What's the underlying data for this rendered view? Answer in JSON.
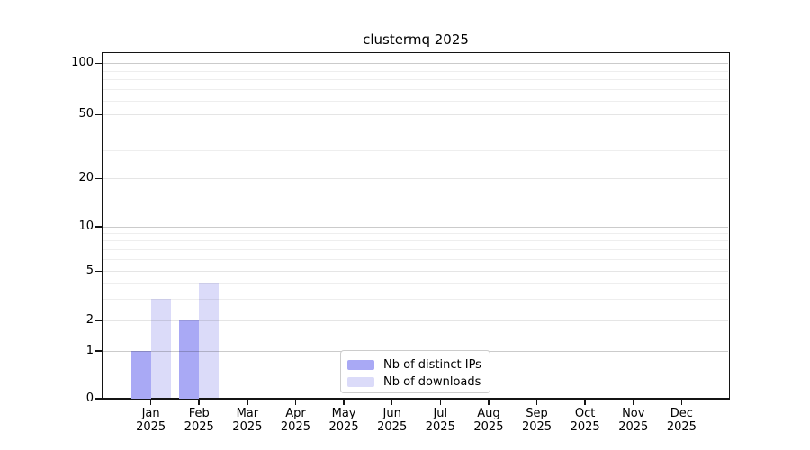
{
  "title": "clustermq 2025",
  "chart_data": {
    "type": "bar",
    "title": "clustermq 2025",
    "categories": [
      "Jan",
      "Feb",
      "Mar",
      "Apr",
      "May",
      "Jun",
      "Jul",
      "Aug",
      "Sep",
      "Oct",
      "Nov",
      "Dec"
    ],
    "category_year": "2025",
    "series": [
      {
        "name": "Nb of distinct IPs",
        "color": "#a9a9f5",
        "values": [
          1,
          2,
          0,
          0,
          0,
          0,
          0,
          0,
          0,
          0,
          0,
          0
        ]
      },
      {
        "name": "Nb of downloads",
        "color": "#dbdbf9",
        "values": [
          3,
          4,
          0,
          0,
          0,
          0,
          0,
          0,
          0,
          0,
          0,
          0
        ]
      }
    ],
    "xlabel": "",
    "ylabel": "",
    "y_axis": {
      "scale": "log-like (0 baseline, log above 1)",
      "tick_labels": [
        0,
        1,
        2,
        5,
        10,
        20,
        50,
        100
      ],
      "minor_gridlines": [
        3,
        4,
        6,
        7,
        8,
        9,
        30,
        40,
        60,
        70,
        80,
        90
      ],
      "ylim": [
        0,
        110
      ]
    },
    "grid": "horizontal, major decades darker than minors",
    "legend_position": "bottom-center inside plot"
  },
  "colors": {
    "bar_distinct_ips": "#a9a9f5",
    "bar_downloads": "#dbdbf9",
    "axis_spine": "#141414",
    "gridline_decade": "#c8c8c8",
    "gridline_labeled": "#e3e3e3",
    "gridline_minor": "#ededed",
    "legend_border": "#cccccc"
  }
}
